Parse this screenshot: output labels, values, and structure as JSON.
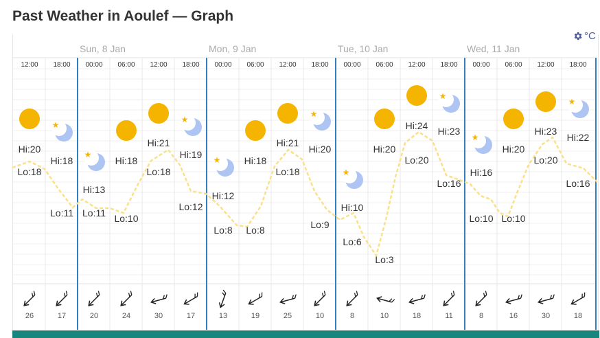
{
  "title": "Past Weather in Aoulef — Graph",
  "units": {
    "label": "°C",
    "icon": "gear-icon"
  },
  "days": [
    "Sun, 8 Jan",
    "Mon, 9 Jan",
    "Tue, 10 Jan",
    "Wed, 11 Jan"
  ],
  "colors": {
    "sun": "#f5b400",
    "moon": "#aec4f2",
    "star": "#f5b400",
    "line": "#fbe08a",
    "divider": "#2f7fc1",
    "bar": "#17877e"
  },
  "columns": [
    {
      "time": "12:00",
      "icon": "sun-icon",
      "hi": "Hi:20",
      "lo": "Lo:18",
      "wind": "26"
    },
    {
      "time": "18:00",
      "icon": "moon-icon",
      "hi": "Hi:18",
      "lo": "Lo:11",
      "wind": "17"
    },
    {
      "time": "00:00",
      "icon": "moon-icon",
      "hi": "Hi:13",
      "lo": "Lo:11",
      "wind": "20"
    },
    {
      "time": "06:00",
      "icon": "sun-icon",
      "hi": "Hi:18",
      "lo": "Lo:10",
      "wind": "24"
    },
    {
      "time": "12:00",
      "icon": "sun-icon",
      "hi": "Hi:21",
      "lo": "Lo:18",
      "wind": "30"
    },
    {
      "time": "18:00",
      "icon": "moon-icon",
      "hi": "Hi:19",
      "lo": "Lo:12",
      "wind": "17"
    },
    {
      "time": "00:00",
      "icon": "moon-icon",
      "hi": "Hi:12",
      "lo": "Lo:8",
      "wind": "13"
    },
    {
      "time": "06:00",
      "icon": "sun-icon",
      "hi": "Hi:18",
      "lo": "Lo:8",
      "wind": "19"
    },
    {
      "time": "12:00",
      "icon": "sun-icon",
      "hi": "Hi:21",
      "lo": "Lo:18",
      "wind": "25"
    },
    {
      "time": "18:00",
      "icon": "moon-icon",
      "hi": "Hi:20",
      "lo": "Lo:9",
      "wind": "10"
    },
    {
      "time": "00:00",
      "icon": "moon-icon",
      "hi": "Hi:10",
      "lo": "Lo:6",
      "wind": "8"
    },
    {
      "time": "06:00",
      "icon": "sun-icon",
      "hi": "Hi:20",
      "lo": "Lo:3",
      "wind": "10"
    },
    {
      "time": "12:00",
      "icon": "sun-icon",
      "hi": "Hi:24",
      "lo": "Lo:20",
      "wind": "18"
    },
    {
      "time": "18:00",
      "icon": "moon-icon",
      "hi": "Hi:23",
      "lo": "Lo:16",
      "wind": "11"
    },
    {
      "time": "00:00",
      "icon": "moon-icon",
      "hi": "Hi:16",
      "lo": "Lo:10",
      "wind": "8"
    },
    {
      "time": "06:00",
      "icon": "sun-icon",
      "hi": "Hi:20",
      "lo": "Lo:10",
      "wind": "16"
    },
    {
      "time": "12:00",
      "icon": "sun-icon",
      "hi": "Hi:23",
      "lo": "Lo:20",
      "wind": "30"
    },
    {
      "time": "18:00",
      "icon": "moon-icon",
      "hi": "Hi:22",
      "lo": "Lo:16",
      "wind": "18"
    }
  ]
}
